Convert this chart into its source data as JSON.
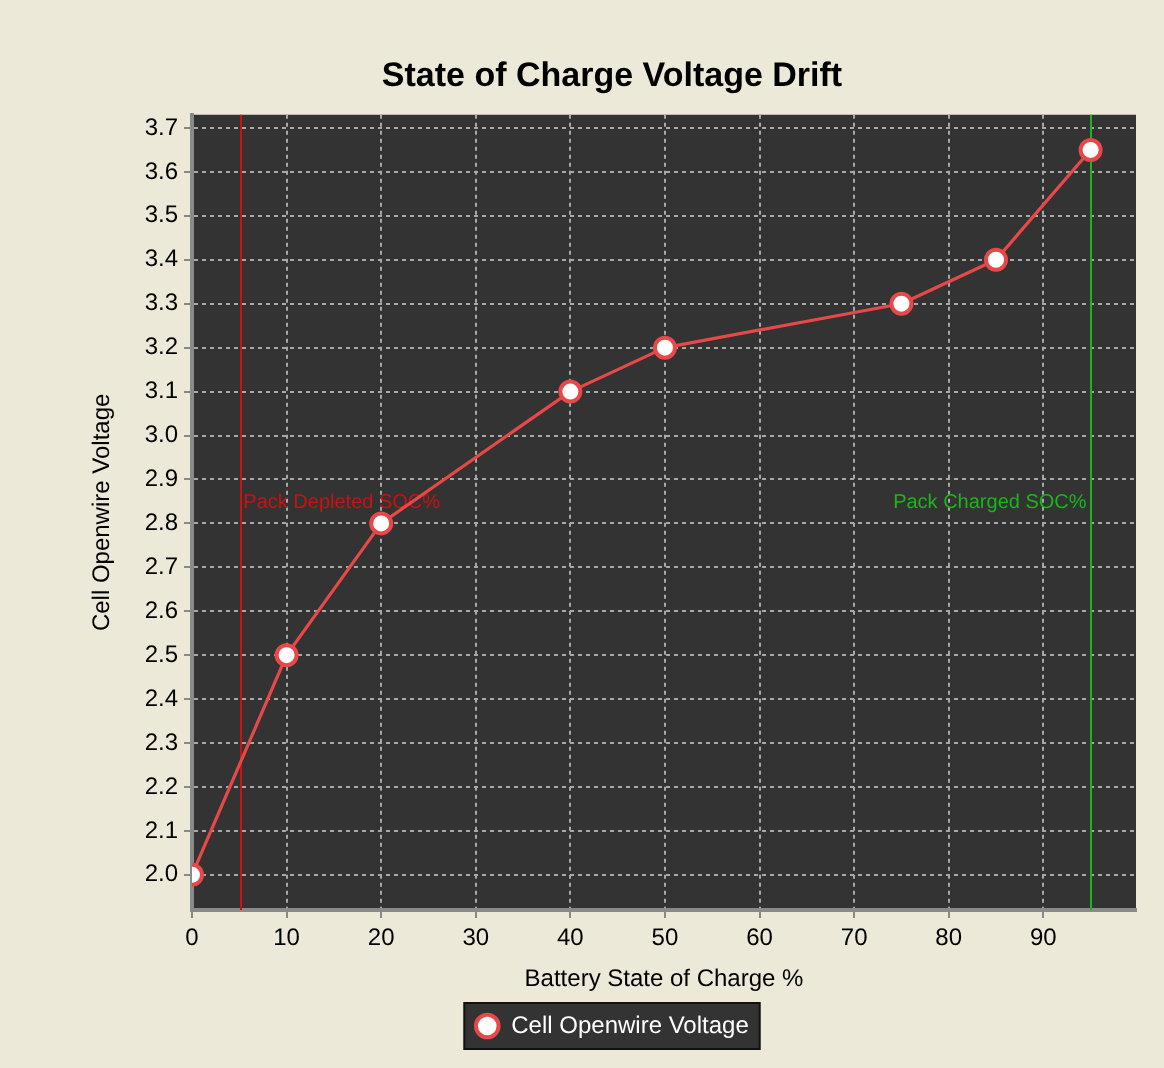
{
  "chart_data": {
    "type": "line",
    "title": "State of Charge Voltage Drift",
    "xlabel": "Battery State of Charge %",
    "ylabel": "Cell Openwire Voltage",
    "x": [
      0,
      10,
      20,
      40,
      50,
      75,
      85,
      95
    ],
    "series": [
      {
        "name": "Cell Openwire Voltage",
        "color": "#e84848",
        "values": [
          2.0,
          2.5,
          2.8,
          3.1,
          3.2,
          3.3,
          3.4,
          3.65
        ]
      }
    ],
    "xlim": [
      0,
      99.8
    ],
    "xticks": [
      0,
      10,
      20,
      30,
      40,
      50,
      60,
      70,
      80,
      90
    ],
    "ylim": [
      1.92,
      3.73
    ],
    "yticks": [
      {
        "value": 2,
        "label": "2.0"
      },
      2.1,
      2.2,
      2.3,
      2.4,
      2.5,
      2.6,
      2.7,
      2.8,
      2.9,
      {
        "value": 3,
        "label": "3.0"
      },
      3.1,
      3.2,
      3.3,
      3.4,
      3.5,
      3.6,
      3.7
    ],
    "ref_lines": [
      {
        "axis": "x",
        "value": 5,
        "label": "Pack Depleted SOC%",
        "color": "#cc1111"
      },
      {
        "axis": "x",
        "value": 95,
        "label": "Pack Charged SOC%",
        "color": "#18b818"
      }
    ],
    "grid": true,
    "legend": "bottom",
    "marker": "circle"
  }
}
